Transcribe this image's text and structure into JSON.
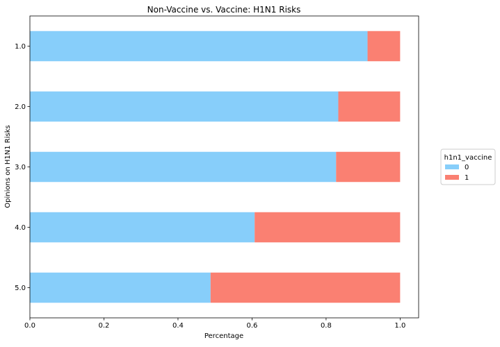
{
  "chart_data": {
    "type": "bar",
    "orientation": "horizontal",
    "stacked": true,
    "title": "Non-Vaccine vs. Vaccine: H1N1 Risks",
    "xlabel": "Percentage",
    "ylabel": "Opinions on H1N1 Risks",
    "categories": [
      "1.0",
      "2.0",
      "3.0",
      "4.0",
      "5.0"
    ],
    "series": [
      {
        "name": "0",
        "color": "#87CEFA",
        "values": [
          0.912,
          0.833,
          0.827,
          0.607,
          0.488
        ]
      },
      {
        "name": "1",
        "color": "#FA8072",
        "values": [
          0.088,
          0.167,
          0.173,
          0.393,
          0.512
        ]
      }
    ],
    "xlim": [
      0,
      1.05
    ],
    "xticks": [
      "0.0",
      "0.2",
      "0.4",
      "0.6",
      "0.8",
      "1.0"
    ],
    "grid": false,
    "legend": {
      "title": "h1n1_vaccine",
      "placement": "center-right, outside plot"
    }
  }
}
